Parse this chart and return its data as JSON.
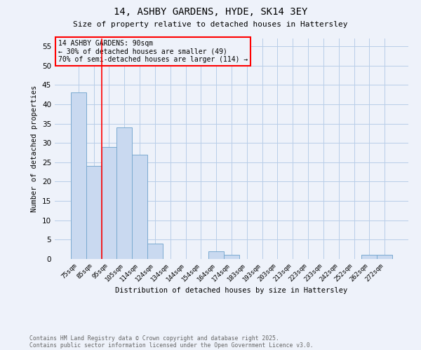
{
  "title1": "14, ASHBY GARDENS, HYDE, SK14 3EY",
  "title2": "Size of property relative to detached houses in Hattersley",
  "xlabel": "Distribution of detached houses by size in Hattersley",
  "ylabel": "Number of detached properties",
  "categories": [
    "75sqm",
    "85sqm",
    "95sqm",
    "105sqm",
    "114sqm",
    "124sqm",
    "134sqm",
    "144sqm",
    "154sqm",
    "164sqm",
    "174sqm",
    "183sqm",
    "193sqm",
    "203sqm",
    "213sqm",
    "223sqm",
    "233sqm",
    "242sqm",
    "252sqm",
    "262sqm",
    "272sqm"
  ],
  "values": [
    43,
    24,
    29,
    34,
    27,
    4,
    0,
    0,
    0,
    2,
    1,
    0,
    0,
    0,
    0,
    0,
    0,
    0,
    0,
    1,
    1
  ],
  "bar_color": "#c9d9f0",
  "bar_edge_color": "#7aaad0",
  "ylim": [
    0,
    57
  ],
  "yticks": [
    0,
    5,
    10,
    15,
    20,
    25,
    30,
    35,
    40,
    45,
    50,
    55
  ],
  "annotation_title": "14 ASHBY GARDENS: 90sqm",
  "annotation_line1": "← 30% of detached houses are smaller (49)",
  "annotation_line2": "70% of semi-detached houses are larger (114) →",
  "footer1": "Contains HM Land Registry data © Crown copyright and database right 2025.",
  "footer2": "Contains public sector information licensed under the Open Government Licence v3.0.",
  "bg_color": "#eef2fa",
  "grid_color": "#b8cde8"
}
